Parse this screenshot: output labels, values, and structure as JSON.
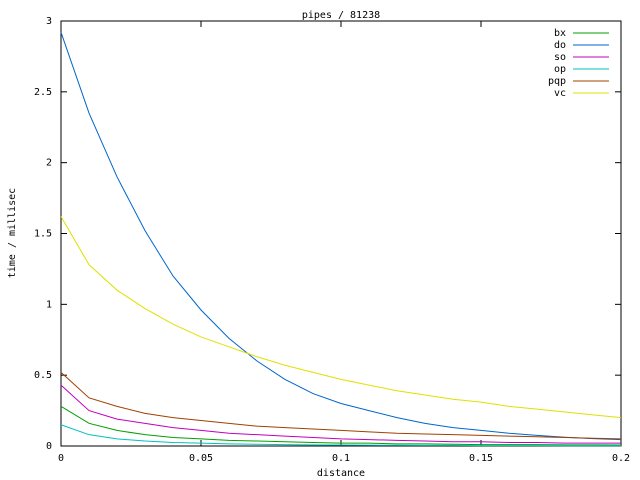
{
  "chart_data": {
    "type": "line",
    "title": "pipes / 81238",
    "xlabel": "distance",
    "ylabel": "time / millisec",
    "x": [
      0,
      0.01,
      0.02,
      0.03,
      0.04,
      0.05,
      0.06,
      0.07,
      0.08,
      0.09,
      0.1,
      0.11,
      0.12,
      0.13,
      0.14,
      0.15,
      0.16,
      0.17,
      0.18,
      0.19,
      0.2
    ],
    "series": [
      {
        "name": "bx",
        "color": "#00a000",
        "values": [
          0.28,
          0.16,
          0.11,
          0.08,
          0.06,
          0.05,
          0.04,
          0.035,
          0.03,
          0.025,
          0.02,
          0.02,
          0.015,
          0.015,
          0.012,
          0.01,
          0.01,
          0.01,
          0.008,
          0.008,
          0.007
        ]
      },
      {
        "name": "do",
        "color": "#0066cc",
        "values": [
          2.92,
          2.35,
          1.9,
          1.52,
          1.2,
          0.96,
          0.76,
          0.6,
          0.47,
          0.37,
          0.3,
          0.25,
          0.2,
          0.16,
          0.13,
          0.11,
          0.09,
          0.075,
          0.062,
          0.052,
          0.045
        ]
      },
      {
        "name": "so",
        "color": "#c000c0",
        "values": [
          0.43,
          0.25,
          0.19,
          0.16,
          0.13,
          0.11,
          0.09,
          0.08,
          0.07,
          0.06,
          0.05,
          0.045,
          0.04,
          0.035,
          0.03,
          0.03,
          0.025,
          0.025,
          0.02,
          0.02,
          0.02
        ]
      },
      {
        "name": "op",
        "color": "#00c0c0",
        "values": [
          0.15,
          0.08,
          0.05,
          0.035,
          0.025,
          0.02,
          0.015,
          0.012,
          0.01,
          0.008,
          0.007,
          0.006,
          0.005,
          0.004,
          0.004,
          0.003,
          0.003,
          0.003,
          0.002,
          0.002,
          0.002
        ]
      },
      {
        "name": "pqp",
        "color": "#a04000",
        "values": [
          0.52,
          0.34,
          0.28,
          0.23,
          0.2,
          0.18,
          0.16,
          0.14,
          0.13,
          0.12,
          0.11,
          0.1,
          0.09,
          0.085,
          0.08,
          0.075,
          0.07,
          0.065,
          0.06,
          0.055,
          0.05
        ]
      },
      {
        "name": "vc",
        "color": "#e0e000",
        "values": [
          1.62,
          1.28,
          1.1,
          0.97,
          0.86,
          0.77,
          0.7,
          0.63,
          0.57,
          0.52,
          0.47,
          0.43,
          0.39,
          0.36,
          0.33,
          0.31,
          0.28,
          0.26,
          0.24,
          0.22,
          0.2
        ]
      }
    ],
    "xlim": [
      0,
      0.2
    ],
    "xticks": [
      0,
      0.05,
      0.1,
      0.15,
      0.2
    ],
    "ylim": [
      0,
      3
    ],
    "yticks": [
      0,
      0.5,
      1,
      1.5,
      2,
      2.5,
      3
    ],
    "grid": false,
    "legend": "top-right"
  }
}
